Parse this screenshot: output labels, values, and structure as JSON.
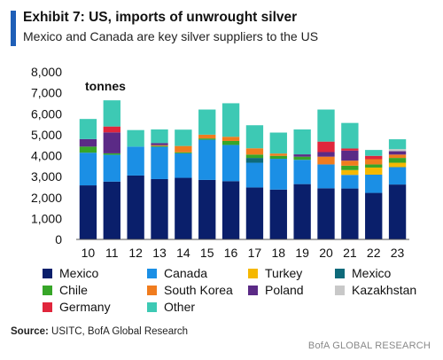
{
  "header": {
    "title": "Exhibit 7: US, imports of unwrought silver",
    "subtitle": "Mexico and Canada are key silver suppliers to the US"
  },
  "footer": {
    "source_label": "Source:",
    "source_text": " USITC, BofA Global Research",
    "brand": "BofA GLOBAL RESEARCH"
  },
  "colors": {
    "accent": "#1f5fb7"
  },
  "chart_data": {
    "type": "bar",
    "stacked": true,
    "unit_label": "tonnes",
    "categories": [
      "10",
      "11",
      "12",
      "13",
      "14",
      "15",
      "16",
      "17",
      "18",
      "19",
      "20",
      "21",
      "22",
      "23"
    ],
    "ylim": [
      0,
      8000
    ],
    "yticks": [
      0,
      1000,
      2000,
      3000,
      4000,
      5000,
      6000,
      7000,
      8000
    ],
    "ytick_labels": [
      "0",
      "1,000",
      "2,000",
      "3,000",
      "4,000",
      "5,000",
      "6,000",
      "7,000",
      "8,000"
    ],
    "grid": false,
    "legend_position": "bottom",
    "series": [
      {
        "name": "Mexico",
        "color": "#0a1f6b",
        "values": [
          2580,
          2760,
          3050,
          2880,
          2940,
          2840,
          2780,
          2480,
          2380,
          2640,
          2440,
          2430,
          2220,
          2620
        ]
      },
      {
        "name": "Canada",
        "color": "#1b8fe5",
        "values": [
          1560,
          1280,
          1380,
          1540,
          1170,
          1920,
          1730,
          1180,
          1470,
          1160,
          1140,
          650,
          870,
          830
        ]
      },
      {
        "name": "Turkey",
        "color": "#f5b800",
        "values": [
          0,
          0,
          0,
          0,
          0,
          0,
          0,
          0,
          0,
          0,
          0,
          230,
          340,
          210
        ]
      },
      {
        "name": "Mexico",
        "color": "#0e6a7a",
        "values": [
          0,
          0,
          0,
          0,
          0,
          0,
          0,
          230,
          0,
          0,
          0,
          0,
          0,
          0
        ]
      },
      {
        "name": "Chile",
        "color": "#37a628",
        "values": [
          290,
          70,
          0,
          40,
          50,
          60,
          190,
          160,
          140,
          150,
          0,
          210,
          150,
          230
        ]
      },
      {
        "name": "South Korea",
        "color": "#f07c1e",
        "values": [
          0,
          0,
          0,
          40,
          300,
          180,
          200,
          300,
          110,
          0,
          370,
          240,
          250,
          160
        ]
      },
      {
        "name": "Poland",
        "color": "#5b2a86",
        "values": [
          360,
          1000,
          0,
          100,
          0,
          0,
          0,
          0,
          0,
          110,
          220,
          480,
          0,
          160
        ]
      },
      {
        "name": "Kazakhstan",
        "color": "#c8c8c8",
        "values": [
          0,
          0,
          0,
          0,
          0,
          0,
          0,
          0,
          0,
          0,
          0,
          0,
          0,
          100
        ]
      },
      {
        "name": "Germany",
        "color": "#e0263c",
        "values": [
          0,
          280,
          0,
          0,
          0,
          0,
          0,
          0,
          0,
          0,
          500,
          100,
          160,
          0
        ]
      },
      {
        "name": "Other",
        "color": "#3dc9b4",
        "values": [
          960,
          1250,
          790,
          650,
          780,
          1200,
          1600,
          1100,
          1000,
          1190,
          1530,
          1220,
          280,
          470
        ]
      }
    ]
  }
}
